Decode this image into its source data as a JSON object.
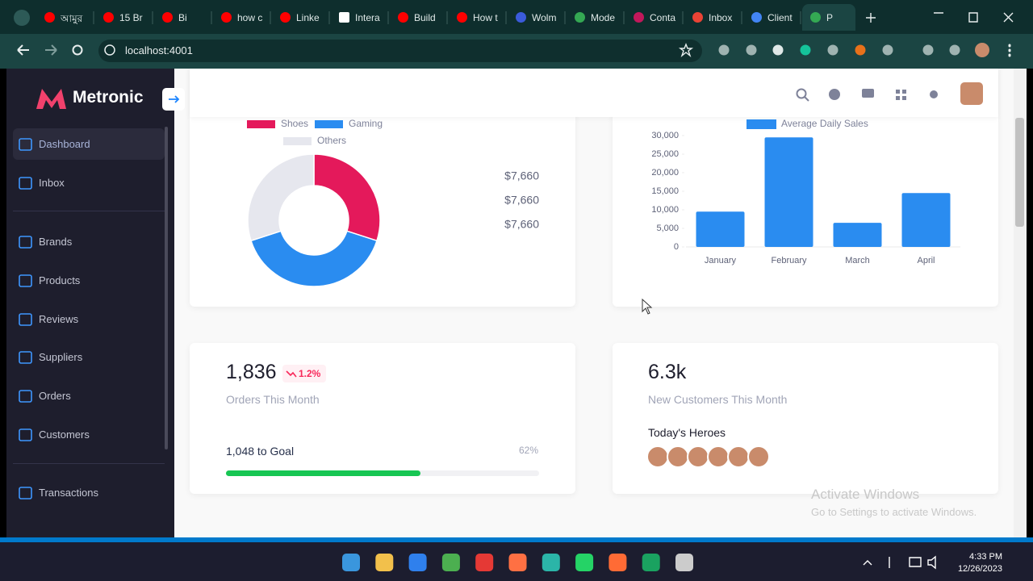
{
  "browser": {
    "tabs": [
      "আমুর",
      "15 Br",
      "Bi",
      "how c",
      "Linke",
      "Intera",
      "Build",
      "How t",
      "Wolm",
      "Mode",
      "Conta",
      "Inbox",
      "Client",
      "P"
    ],
    "address": "localhost:4001"
  },
  "sidebar": {
    "brand": "Metronic",
    "menu": [
      "Dashboard",
      "Inbox",
      "Brands",
      "Products",
      "Reviews",
      "Suppliers",
      "Orders",
      "Customers",
      "Transactions"
    ]
  },
  "chart_data": [
    {
      "type": "pie",
      "donut": true,
      "categories": [
        "Shoes",
        "Gaming",
        "Others"
      ],
      "values": [
        30,
        40,
        30
      ],
      "colors": [
        "#e4195b",
        "#2a8cf0",
        "#e6e7ee"
      ]
    },
    {
      "type": "bar",
      "categories": [
        "January",
        "February",
        "March",
        "April"
      ],
      "series": [
        {
          "name": "Average Daily Sales",
          "color": "#2a8cf0",
          "values": [
            9500,
            29500,
            6500,
            14500
          ]
        }
      ],
      "ylim": [
        0,
        30000
      ],
      "yticks": [
        0,
        {
          "value": 5000,
          "label": "5,000"
        },
        {
          "value": 10000,
          "label": "10,000"
        },
        {
          "value": 15000,
          "label": "15,000"
        },
        {
          "value": 20000,
          "label": "20,000"
        },
        {
          "value": 25000,
          "label": "25,000"
        },
        {
          "value": 30000,
          "label": "30,000"
        }
      ],
      "grid": false
    }
  ],
  "amounts": [
    "$7,660",
    "$7,660",
    "$7,660"
  ],
  "orders_card": {
    "value": "1,836",
    "trend": "1.2%",
    "label": "Orders This Month",
    "goal": "1,048 to Goal",
    "progress": {
      "value": 62,
      "label": "62%"
    }
  },
  "customers_card": {
    "value": "6.3k",
    "label": "New Customers This Month",
    "heroes": "Today's Heroes"
  },
  "watermark": {
    "title": "Activate Windows",
    "text": "Go to Settings to activate Windows."
  },
  "taskbar": {
    "time": "4:33 PM",
    "date": "12/26/2023"
  }
}
